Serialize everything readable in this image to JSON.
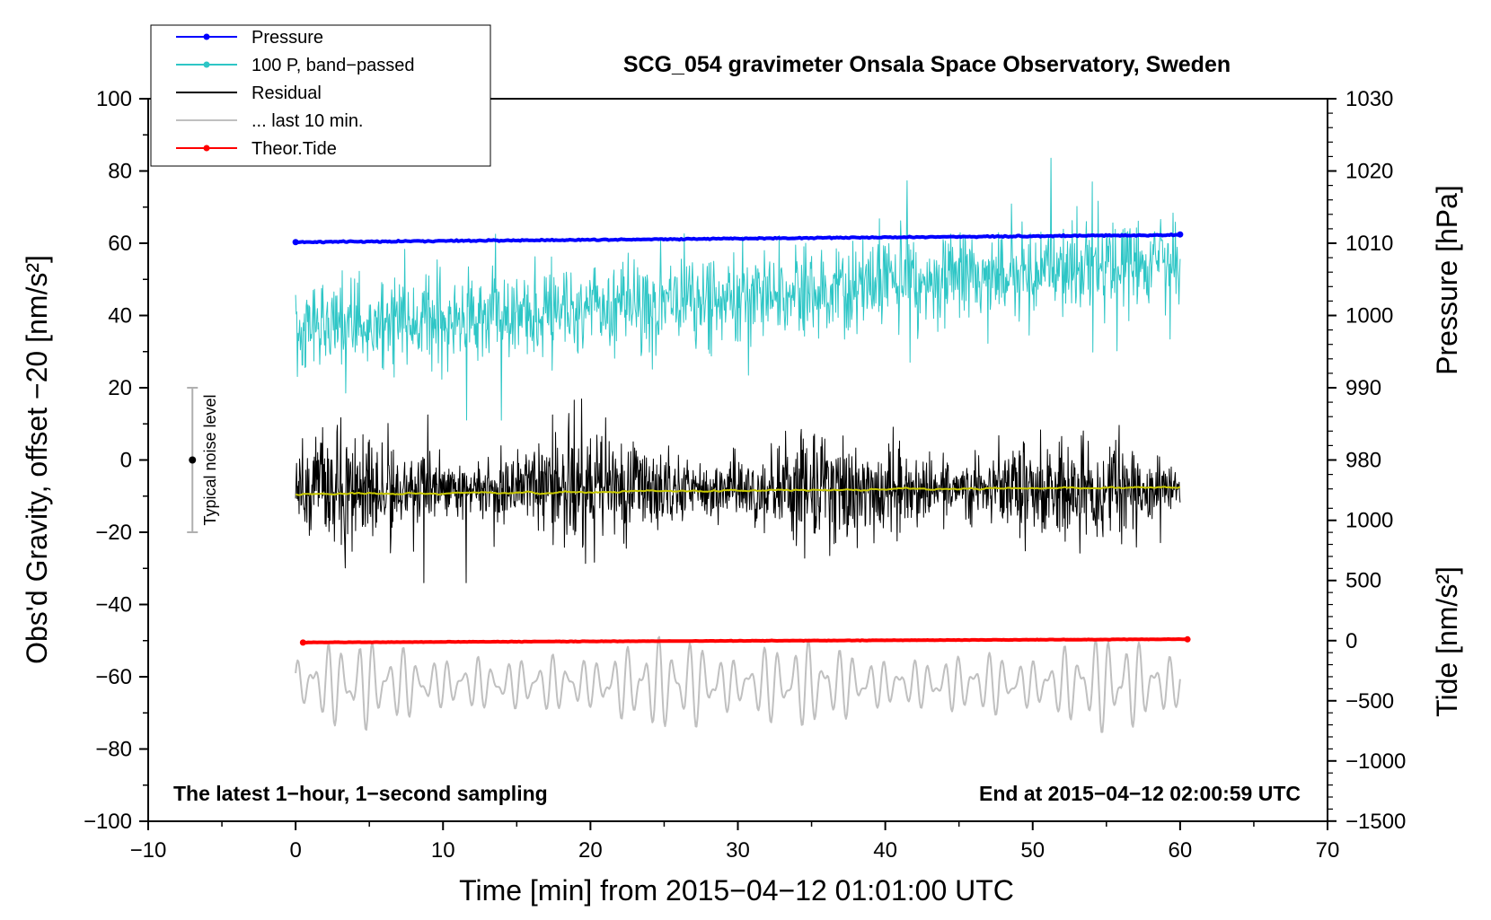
{
  "chart_data": {
    "type": "line",
    "title": "SCG_054 gravimeter Onsala Space Observatory, Sweden",
    "xlabel": "Time [min] from 2015−04−12 01:01:00 UTC",
    "ylabel": "Obs'd Gravity, offset −20 [nm/s²]",
    "ylabel_right_top": "Pressure [hPa]",
    "ylabel_right_bottom": "Tide [nm/s²]",
    "xlim": [
      -10,
      70
    ],
    "ylim": [
      -100,
      100
    ],
    "x_ticks": [
      {
        "value": -10,
        "label": "−10"
      },
      {
        "value": 0,
        "label": "0"
      },
      {
        "value": 10,
        "label": "10"
      },
      {
        "value": 20,
        "label": "20"
      },
      {
        "value": 30,
        "label": "30"
      },
      {
        "value": 40,
        "label": "40"
      },
      {
        "value": 50,
        "label": "50"
      },
      {
        "value": 60,
        "label": "60"
      },
      {
        "value": 70,
        "label": "70"
      }
    ],
    "y_ticks": [
      {
        "value": 100,
        "label": "100"
      },
      {
        "value": 80,
        "label": "80"
      },
      {
        "value": 60,
        "label": "60"
      },
      {
        "value": 40,
        "label": "40"
      },
      {
        "value": 20,
        "label": "20"
      },
      {
        "value": 0,
        "label": "0"
      },
      {
        "value": -20,
        "label": "−20"
      },
      {
        "value": -40,
        "label": "−40"
      },
      {
        "value": -60,
        "label": "−60"
      },
      {
        "value": -80,
        "label": "−80"
      },
      {
        "value": -100,
        "label": "−100"
      }
    ],
    "pressure_axis": {
      "ref_gravity": 60,
      "ref_value": 1010,
      "units_per_hpa": 2.0,
      "ticks": [
        {
          "value": 1030,
          "label": "1030"
        },
        {
          "value": 1020,
          "label": "1020"
        },
        {
          "value": 1010,
          "label": "1010"
        },
        {
          "value": 1000,
          "label": "1000"
        },
        {
          "value": 990,
          "label": "990"
        },
        {
          "value": 980,
          "label": "980"
        }
      ]
    },
    "tide_axis": {
      "ref_gravity": -50,
      "ref_value": 0,
      "units_per_nms2": 0.0333,
      "ticks": [
        {
          "value": 1000,
          "label": "1000"
        },
        {
          "value": 500,
          "label": "500"
        },
        {
          "value": 0,
          "label": "0"
        },
        {
          "value": -500,
          "label": "−500"
        },
        {
          "value": -1000,
          "label": "−1000"
        },
        {
          "value": -1500,
          "label": "−1500"
        }
      ]
    },
    "series": [
      {
        "name": "Pressure",
        "color": "#0000ff",
        "x_range": [
          0,
          60
        ],
        "y_start": 60.3,
        "y_end": 62.3,
        "noise": 0.3,
        "style": "dots"
      },
      {
        "name": "100 P, band−passed",
        "color": "#2ec6c6",
        "x_range": [
          0,
          60
        ],
        "y_start": 36,
        "y_end": 55,
        "noise": 10,
        "style": "line"
      },
      {
        "name": "Residual",
        "color": "#000000",
        "x_range": [
          0,
          60
        ],
        "y_start": -8,
        "y_end": -8,
        "noise": 10,
        "style": "line"
      },
      {
        "name": "... last 10 min.",
        "color": "#c0c0c0",
        "x_range": [
          0,
          60
        ],
        "y_start": -62,
        "y_end": -62,
        "noise": 9,
        "style": "line"
      },
      {
        "name": "Theor.Tide",
        "color": "#ff0000",
        "x_range": [
          0.5,
          60.5
        ],
        "y_start": -50.5,
        "y_end": -49.6,
        "noise": 0.1,
        "style": "dots"
      },
      {
        "name": "Residual smoothed",
        "color": "#c8c800",
        "x_range": [
          0,
          60
        ],
        "y_start": -9.5,
        "y_end": -7.5,
        "noise": 0.6,
        "style": "line"
      }
    ],
    "legend": [
      {
        "label": "Pressure",
        "color": "#0000ff",
        "marker": true
      },
      {
        "label": "100 P, band−passed",
        "color": "#2ec6c6",
        "marker": true
      },
      {
        "label": "Residual",
        "color": "#000000",
        "marker": false
      },
      {
        "label": "... last 10 min.",
        "color": "#c0c0c0",
        "marker": false
      },
      {
        "label": "Theor.Tide",
        "color": "#ff0000",
        "marker": true
      }
    ],
    "noise_bar": {
      "x": -7,
      "center": 0,
      "half_range": 20,
      "label": "Typical noise level"
    },
    "annotations": {
      "left": "The latest 1−hour, 1−second sampling",
      "right": "End at 2015−04−12 02:00:59 UTC"
    }
  }
}
